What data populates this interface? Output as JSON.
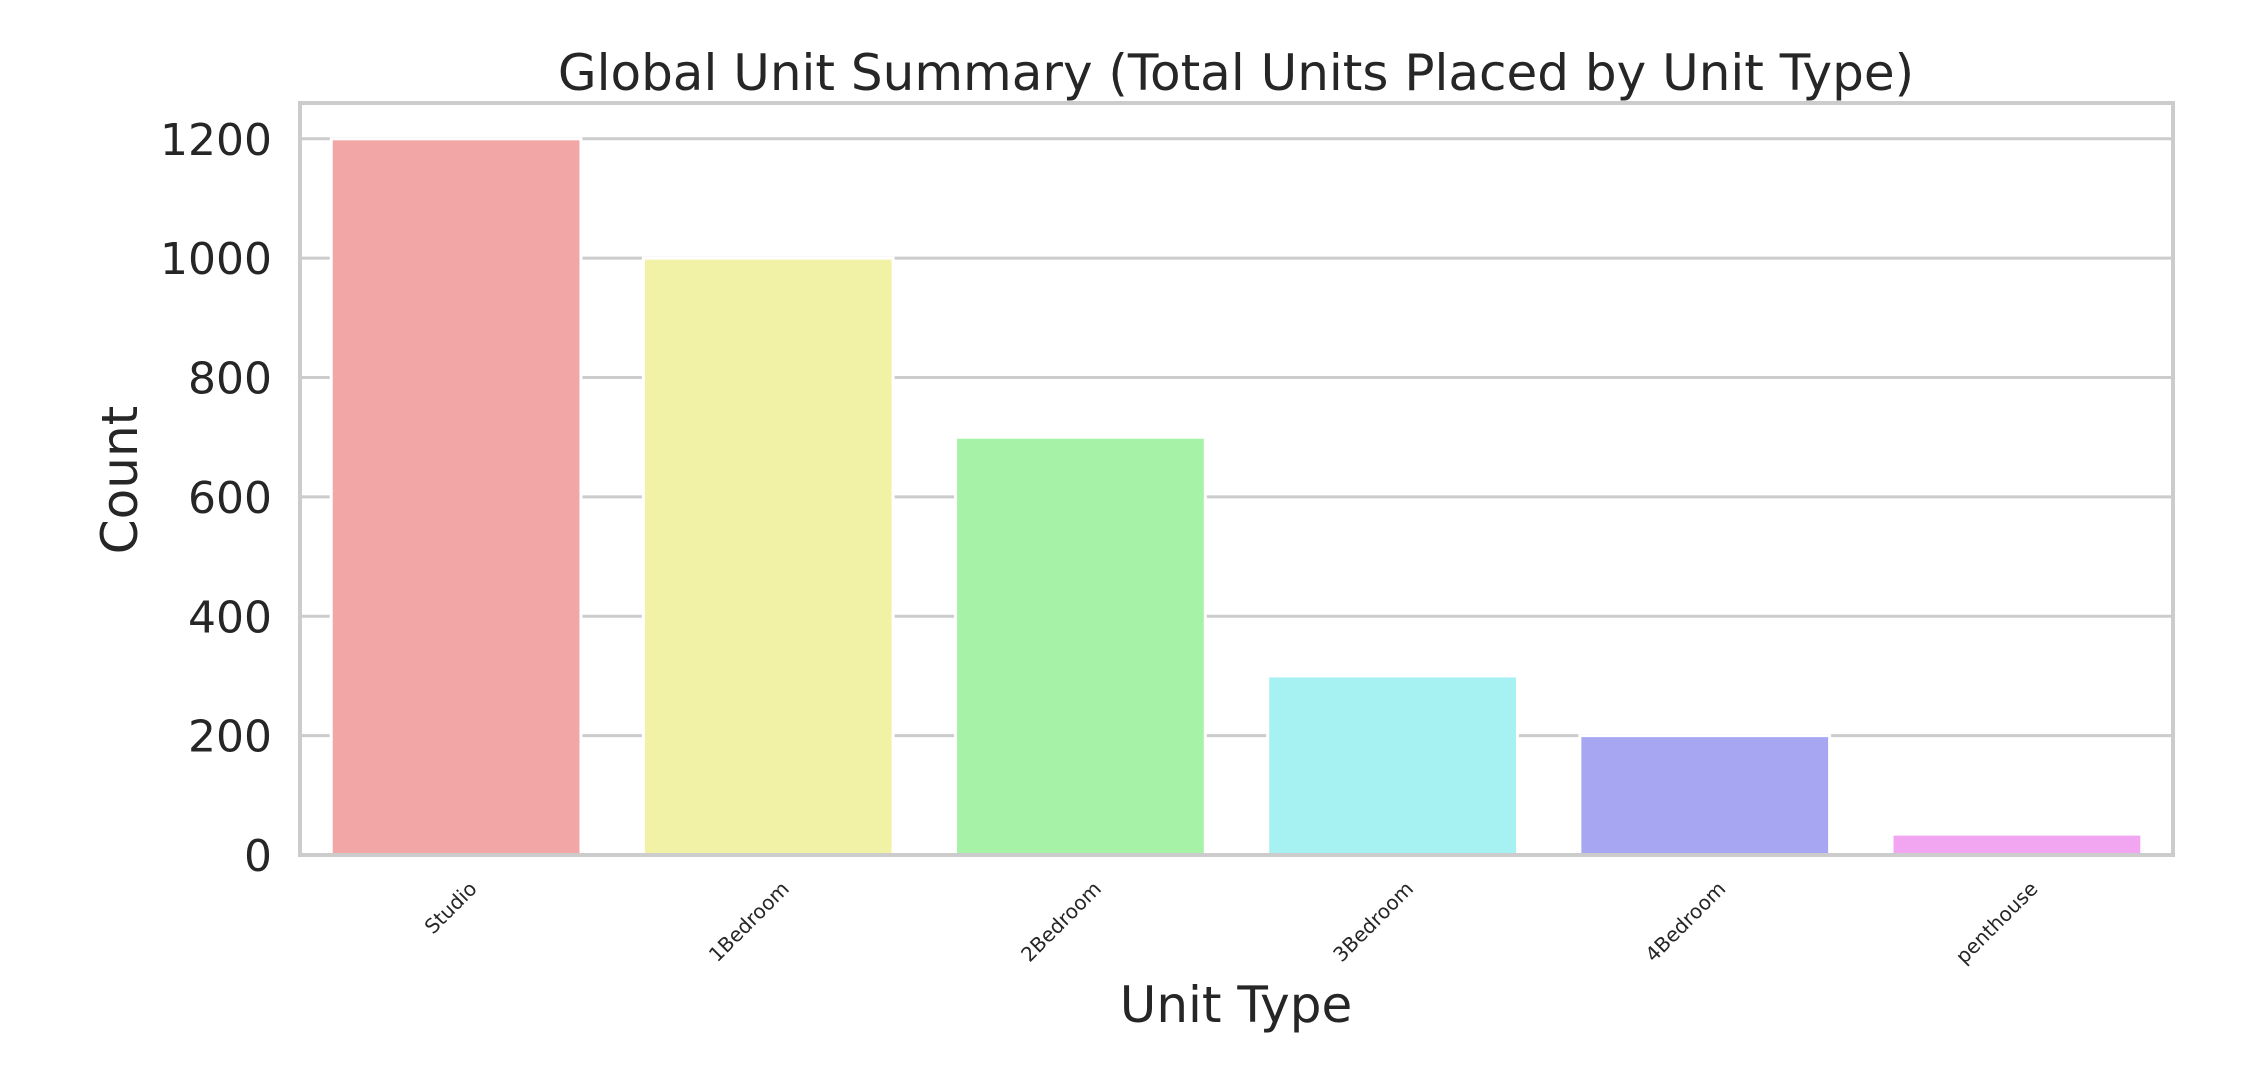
{
  "chart_data": {
    "type": "bar",
    "title": "Global Unit Summary (Total Units Placed by Unit Type)",
    "xlabel": "Unit Type",
    "ylabel": "Count",
    "categories": [
      "Studio",
      "1Bedroom",
      "2Bedroom",
      "3Bedroom",
      "4Bedroom",
      "penthouse"
    ],
    "values": [
      1200,
      1000,
      700,
      300,
      200,
      35
    ],
    "colors": [
      "#f2a6a6",
      "#f2f2a6",
      "#a6f2a6",
      "#a6f2f2",
      "#a6a6f2",
      "#f2a6f2"
    ],
    "ylim": [
      0,
      1260
    ],
    "yticks": [
      0,
      200,
      400,
      600,
      800,
      1000,
      1200
    ],
    "grid": true,
    "legend": "none"
  }
}
